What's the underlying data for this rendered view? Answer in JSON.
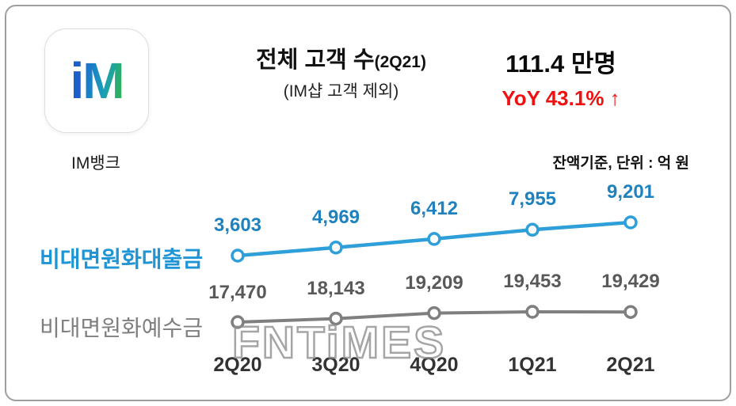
{
  "logo": {
    "mark_i": "i",
    "mark_m": "M",
    "label": "IM뱅크"
  },
  "header": {
    "title": "전체 고객 수",
    "title_suffix": "(2Q21)",
    "subtitle": "(IM샵 고객 제외)",
    "headline_value": "111.4 만명",
    "yoy": "YoY 43.1% ↑"
  },
  "unit_note": "잔액기준, 단위 : 억 원",
  "watermark": "FNTiMES",
  "colors": {
    "loans_line": "#2e9fd8",
    "loans_text": "#1f82be",
    "deposits_line": "#7f7f7f",
    "deposits_text": "#595959",
    "yoy_red": "#ee1111"
  },
  "chart_data": {
    "type": "line",
    "title": "전체 고객 수(2Q21) (IM샵 고객 제외)",
    "unit": "잔액기준, 단위 : 억 원",
    "categories": [
      "2Q20",
      "3Q20",
      "4Q20",
      "1Q21",
      "2Q21"
    ],
    "series": [
      {
        "name": "비대면원화대출금",
        "color": "#2e9fd8",
        "values": [
          3603,
          4969,
          6412,
          7955,
          9201
        ],
        "labels": [
          "3,603",
          "4,969",
          "6,412",
          "7,955",
          "9,201"
        ]
      },
      {
        "name": "비대면원화예수금",
        "color": "#7f7f7f",
        "values": [
          17470,
          18143,
          19209,
          19453,
          19429
        ],
        "labels": [
          "17,470",
          "18,143",
          "19,209",
          "19,453",
          "19,429"
        ]
      }
    ],
    "grid": false,
    "legend_position": "left-of-lines",
    "marker": "open-circle"
  }
}
